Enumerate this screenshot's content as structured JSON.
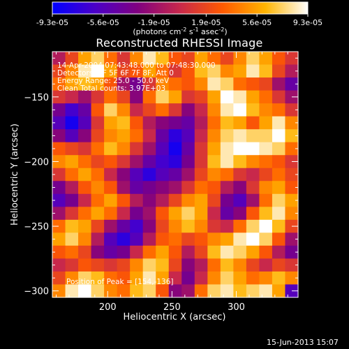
{
  "colorbar": {
    "tick_labels": [
      "-9.3e-05",
      "-5.6e-05",
      "-1.9e-05",
      "1.9e-05",
      "5.6e-05",
      "9.3e-05"
    ],
    "tick_values": [
      -9.3e-05,
      -5.6e-05,
      -1.9e-05,
      1.9e-05,
      5.6e-05,
      9.3e-05
    ],
    "range": [
      -9.3e-05,
      9.3e-05
    ],
    "unit_prefix": "(photons cm",
    "unit_exp1": "-2",
    "unit_mid1": " s",
    "unit_exp2": "-1",
    "unit_mid2": " asec",
    "unit_exp3": "-2",
    "unit_suffix": ")",
    "colormap_stops": [
      "#0000ff",
      "#4b00c8",
      "#800080",
      "#c8284b",
      "#ff5a00",
      "#ffb400",
      "#ffffff"
    ]
  },
  "plot": {
    "title": "Reconstructed RHESSI Image",
    "info": {
      "time_range": "14-Apr-2004 07:43:48.000 to 07:48:30.000",
      "detectors": "Detectors: 4F 5F 6F 7F 8F, Att 0",
      "energy_range": "Energy Range: 25.0 - 50.0 keV",
      "clean_counts": "Clean     Total counts: 3.97E+03"
    },
    "peak_text": "Position of Peak = [154,-136]",
    "footer_date": "15-Jun-2013 15:07"
  },
  "chart_data": {
    "type": "heatmap",
    "title": "Reconstructed RHESSI Image",
    "xlabel": "Heliocentric X (arcsec)",
    "ylabel": "Heliocentric Y (arcsec)",
    "xlim": [
      157,
      348
    ],
    "ylim": [
      -305,
      -115
    ],
    "x_ticks": [
      200,
      250,
      300
    ],
    "y_ticks": [
      -150,
      -200,
      -250,
      -300
    ],
    "x_tick_labels": [
      "200",
      "250",
      "300"
    ],
    "y_tick_labels": [
      "-150",
      "-200",
      "-250",
      "-300"
    ],
    "peak": [
      154,
      -136
    ],
    "value_range": [
      -9.3e-05,
      9.3e-05
    ],
    "image_rows": [
      [
        -0.1,
        0.2,
        0.6,
        0.8,
        0.4,
        0.1,
        0.5,
        0.9,
        0.7,
        0.3,
        0.2,
        0.6,
        0.4,
        0.2,
        0.5,
        0.8,
        0.6,
        0.3,
        0.1
      ],
      [
        0.2,
        0.5,
        0.9,
        1.0,
        0.6,
        0.2,
        0.3,
        0.6,
        0.4,
        0.1,
        0.3,
        0.7,
        0.8,
        0.5,
        0.6,
        0.9,
        0.7,
        0.2,
        -0.1
      ],
      [
        0.4,
        0.6,
        0.7,
        0.6,
        0.3,
        -0.2,
        -0.4,
        0.1,
        0.5,
        0.4,
        0.3,
        0.5,
        0.9,
        0.8,
        0.4,
        0.3,
        0.2,
        -0.2,
        -0.5
      ],
      [
        0.1,
        0.0,
        -0.2,
        0.1,
        0.4,
        0.2,
        -0.3,
        0.4,
        0.8,
        0.6,
        0.1,
        0.2,
        0.6,
        1.0,
        0.9,
        0.6,
        0.4,
        0.1,
        -0.2
      ],
      [
        -0.4,
        -0.7,
        -0.5,
        0.3,
        0.8,
        0.5,
        0.0,
        0.2,
        0.4,
        0.1,
        -0.3,
        0.0,
        0.5,
        0.9,
        1.0,
        0.7,
        0.5,
        0.4,
        0.1
      ],
      [
        -0.6,
        -0.9,
        -0.6,
        0.1,
        0.6,
        0.7,
        0.3,
        -0.1,
        -0.3,
        -0.4,
        -0.5,
        -0.1,
        0.4,
        0.7,
        0.6,
        0.3,
        0.6,
        0.9,
        0.5
      ],
      [
        -0.3,
        -0.6,
        -0.3,
        0.2,
        0.5,
        0.6,
        0.4,
        0.0,
        -0.5,
        -0.8,
        -0.6,
        0.0,
        0.5,
        0.8,
        0.9,
        0.8,
        0.8,
        1.0,
        0.7
      ],
      [
        0.3,
        0.2,
        0.1,
        0.4,
        0.7,
        0.5,
        0.1,
        -0.2,
        -0.6,
        -0.9,
        -0.5,
        0.1,
        0.6,
        0.9,
        1.0,
        1.0,
        0.9,
        0.8,
        0.4
      ],
      [
        0.5,
        0.6,
        0.4,
        0.2,
        0.3,
        0.1,
        -0.2,
        -0.5,
        -0.7,
        -0.8,
        -0.4,
        0.1,
        0.7,
        0.9,
        0.7,
        0.5,
        0.4,
        0.3,
        0.1
      ],
      [
        0.1,
        0.4,
        0.6,
        0.4,
        0.0,
        -0.3,
        -0.6,
        -0.8,
        -0.6,
        -0.5,
        -0.2,
        0.2,
        0.5,
        0.4,
        0.1,
        0.0,
        0.2,
        0.4,
        0.2
      ],
      [
        -0.4,
        -0.1,
        0.3,
        0.5,
        0.3,
        -0.2,
        -0.5,
        -0.4,
        -0.3,
        -0.2,
        0.1,
        0.4,
        0.3,
        -0.1,
        -0.3,
        0.1,
        0.5,
        0.6,
        0.3
      ],
      [
        -0.6,
        -0.4,
        0.0,
        0.4,
        0.6,
        0.3,
        -0.1,
        -0.3,
        -0.1,
        0.2,
        0.5,
        0.6,
        0.2,
        -0.4,
        -0.6,
        -0.2,
        0.4,
        0.8,
        0.6
      ],
      [
        -0.2,
        0.1,
        0.4,
        0.6,
        0.4,
        0.0,
        -0.4,
        -0.2,
        0.3,
        0.6,
        0.8,
        0.6,
        0.0,
        -0.5,
        -0.3,
        0.3,
        0.7,
        0.9,
        0.5
      ],
      [
        0.4,
        0.7,
        0.6,
        0.2,
        -0.2,
        -0.5,
        -0.7,
        -0.3,
        0.2,
        0.5,
        0.7,
        0.5,
        0.1,
        0.0,
        0.4,
        0.8,
        1.0,
        0.7,
        0.2
      ],
      [
        0.6,
        0.8,
        0.5,
        -0.1,
        -0.6,
        -0.8,
        -0.6,
        -0.1,
        0.3,
        0.4,
        0.2,
        0.3,
        0.5,
        0.6,
        0.9,
        1.0,
        0.8,
        0.3,
        -0.2
      ],
      [
        0.3,
        0.4,
        0.2,
        -0.3,
        -0.5,
        -0.4,
        0.0,
        0.4,
        0.6,
        0.3,
        -0.1,
        0.2,
        0.7,
        0.9,
        0.8,
        0.6,
        0.3,
        -0.1,
        -0.4
      ],
      [
        0.0,
        0.1,
        0.3,
        0.2,
        0.1,
        0.2,
        0.5,
        0.8,
        0.7,
        0.2,
        -0.3,
        -0.1,
        0.4,
        0.7,
        0.5,
        0.2,
        0.0,
        0.2,
        0.1
      ],
      [
        0.2,
        0.5,
        0.8,
        0.7,
        0.4,
        0.3,
        0.6,
        0.9,
        0.6,
        0.0,
        -0.4,
        0.0,
        0.5,
        0.8,
        0.6,
        0.4,
        0.5,
        0.7,
        0.5
      ],
      [
        0.5,
        0.9,
        1.0,
        0.8,
        0.5,
        0.4,
        0.7,
        0.8,
        0.3,
        -0.3,
        -0.2,
        0.4,
        0.8,
        0.9,
        0.7,
        0.8,
        0.9,
        0.6,
        -0.6
      ]
    ]
  }
}
